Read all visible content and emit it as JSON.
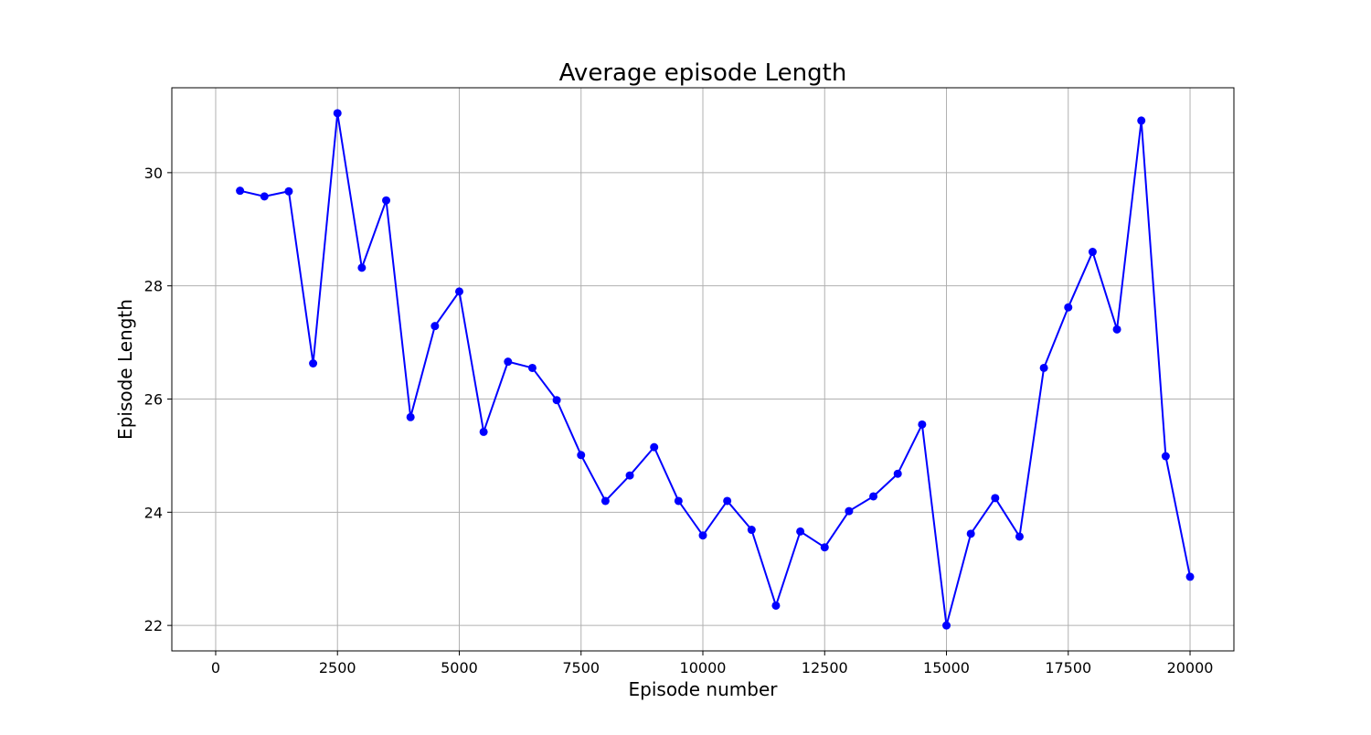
{
  "chart_data": {
    "type": "line",
    "title": "Average episode Length",
    "xlabel": "Episode number",
    "ylabel": "Episode Length",
    "xlim": [
      -900,
      20900
    ],
    "ylim": [
      21.55,
      31.5
    ],
    "x_ticks": [
      0,
      2500,
      5000,
      7500,
      10000,
      12500,
      15000,
      17500,
      20000
    ],
    "x_tick_labels": [
      "0",
      "2500",
      "5000",
      "7500",
      "10000",
      "12500",
      "15000",
      "17500",
      "20000"
    ],
    "y_ticks": [
      22,
      24,
      26,
      28,
      30
    ],
    "y_tick_labels": [
      "22",
      "24",
      "26",
      "28",
      "30"
    ],
    "grid": true,
    "legend": false,
    "series": [
      {
        "color": "#0000ff",
        "marker": "circle",
        "x": [
          500,
          1000,
          1500,
          2000,
          2500,
          3000,
          3500,
          4000,
          4500,
          5000,
          5500,
          6000,
          6500,
          7000,
          7500,
          8000,
          8500,
          9000,
          9500,
          10000,
          10500,
          11000,
          11500,
          12000,
          12500,
          13000,
          13500,
          14000,
          14500,
          15000,
          15500,
          16000,
          16500,
          17000,
          17500,
          18000,
          18500,
          19000,
          19500,
          20000
        ],
        "y": [
          29.68,
          29.58,
          29.67,
          26.63,
          31.05,
          28.32,
          29.51,
          25.68,
          27.29,
          27.9,
          25.42,
          26.66,
          26.55,
          25.98,
          25.01,
          24.2,
          24.65,
          25.15,
          24.2,
          23.59,
          24.2,
          23.69,
          22.35,
          23.66,
          23.38,
          24.02,
          24.28,
          24.68,
          25.55,
          22.0,
          23.62,
          24.25,
          23.57,
          26.55,
          27.62,
          28.6,
          27.23,
          30.92,
          24.99,
          22.86
        ]
      }
    ]
  }
}
